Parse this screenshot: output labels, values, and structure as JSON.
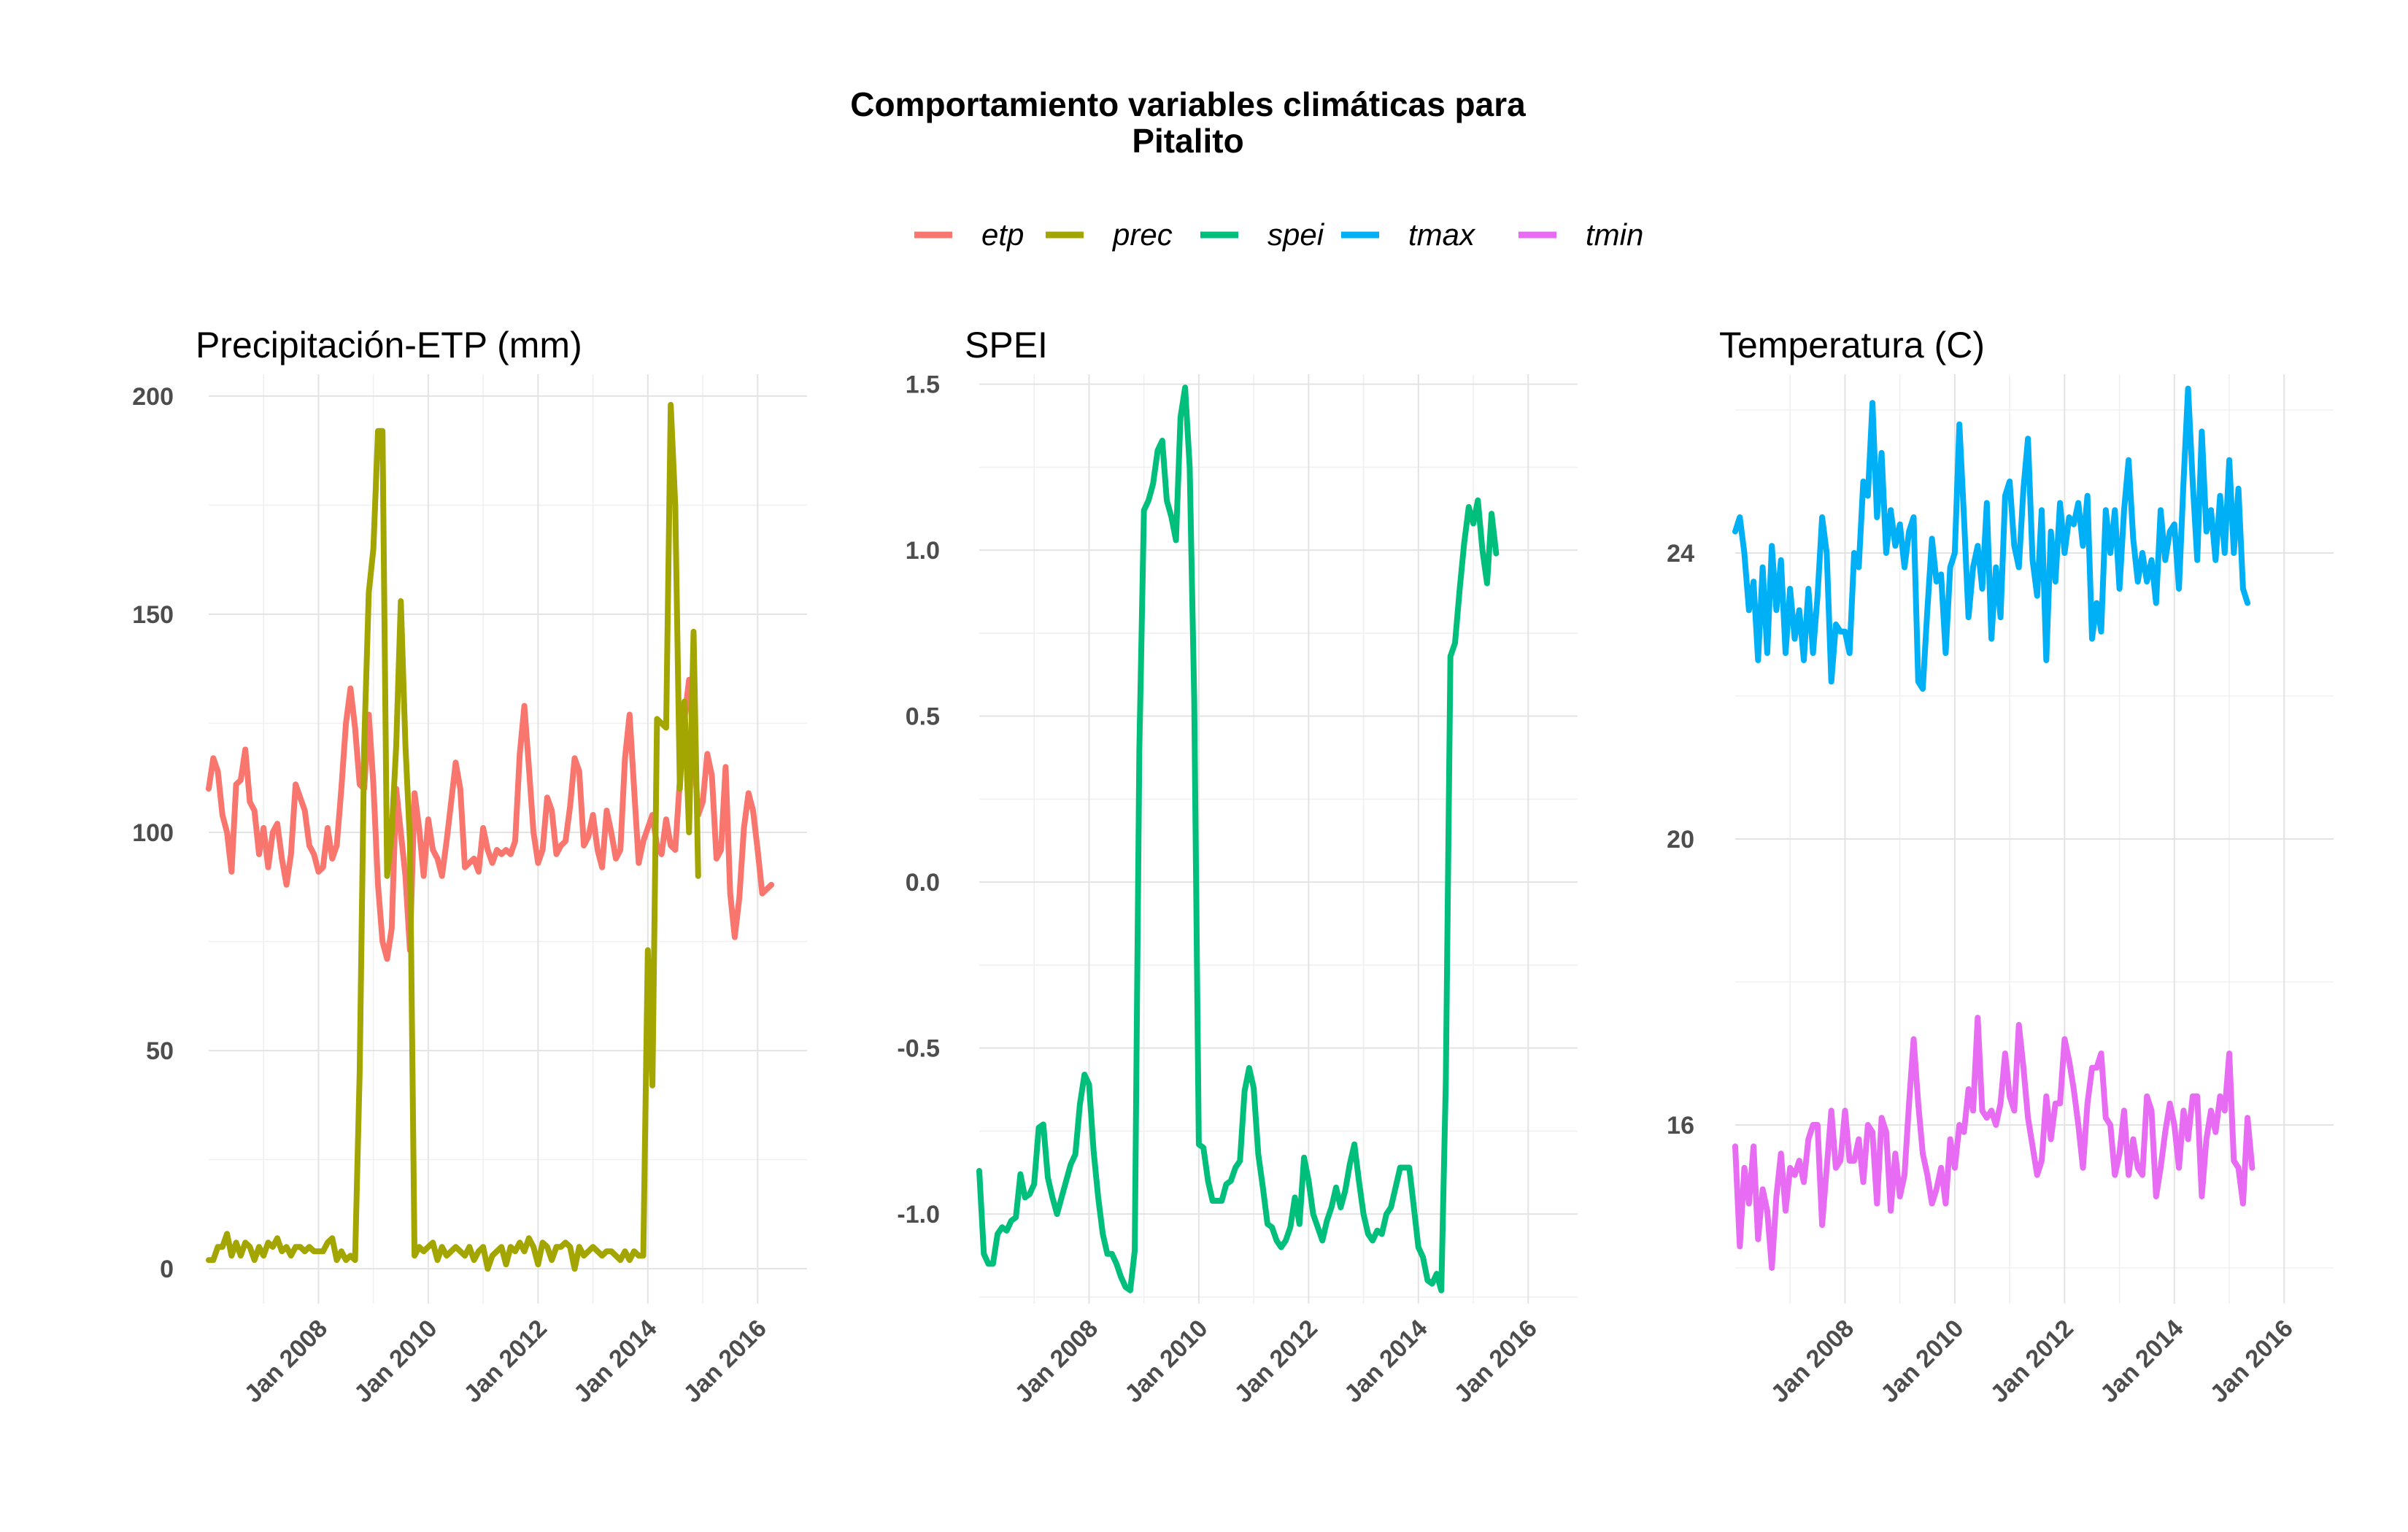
{
  "title_line1": "Comportamiento variables climáticas para",
  "title_line2": "Pitalito",
  "legend": [
    {
      "key": "etp",
      "label": "etp",
      "color": "#F8766D"
    },
    {
      "key": "prec",
      "label": "prec",
      "color": "#A3A500"
    },
    {
      "key": "spei",
      "label": "spei",
      "color": "#00BF7D"
    },
    {
      "key": "tmax",
      "label": "tmax",
      "color": "#00B0F6"
    },
    {
      "key": "tmin",
      "label": "tmin",
      "color": "#E76BF3"
    }
  ],
  "chart_data": [
    {
      "type": "line",
      "title": "Precipitación-ETP (mm)",
      "xlabel": "",
      "ylabel": "",
      "xlim": [
        2006.0,
        2016.9
      ],
      "ylim": [
        -8,
        205
      ],
      "x_ticks": [
        2008,
        2010,
        2012,
        2014,
        2016
      ],
      "x_tick_labels": [
        "Jan 2008",
        "Jan 2010",
        "Jan 2012",
        "Jan 2014",
        "Jan 2016"
      ],
      "y_ticks": [
        0,
        50,
        100,
        150,
        200
      ],
      "y_tick_labels": [
        "0",
        "50",
        "100",
        "150",
        "200"
      ],
      "grid": true,
      "series": [
        {
          "name": "etp",
          "color": "#F8766D",
          "x_start": 2006.0,
          "x_step": 0.0833333,
          "values": [
            110,
            117,
            114,
            104,
            100,
            91,
            111,
            112,
            119,
            107,
            105,
            95,
            101,
            92,
            100,
            102,
            94,
            88,
            95,
            111,
            108,
            105,
            97,
            95,
            91,
            92,
            101,
            94,
            97,
            110,
            125,
            133,
            124,
            111,
            110,
            127,
            111,
            88,
            75,
            71,
            78,
            110,
            100,
            90,
            73,
            109,
            101,
            90,
            103,
            96,
            94,
            90,
            98,
            107,
            116,
            110,
            92,
            93,
            94,
            91,
            101,
            96,
            93,
            96,
            95,
            96,
            95,
            98,
            118,
            129,
            115,
            100,
            93,
            96,
            108,
            105,
            95,
            97,
            98,
            106,
            117,
            114,
            97,
            99,
            104,
            96,
            92,
            105,
            100,
            94,
            96,
            117,
            127,
            110,
            93,
            98,
            101,
            104,
            97,
            95,
            103,
            97,
            96,
            112,
            126,
            135,
            120,
            104,
            107,
            118,
            113,
            94,
            96,
            115,
            86,
            76,
            85,
            101,
            109,
            105,
            96,
            86,
            87,
            88
          ]
        },
        {
          "name": "prec",
          "color": "#A3A500",
          "x_start": 2006.0,
          "x_step": 0.0833333,
          "values": [
            2,
            2,
            5,
            5,
            8,
            3,
            6,
            3,
            6,
            5,
            2,
            5,
            3,
            6,
            5,
            7,
            4,
            5,
            3,
            5,
            5,
            4,
            5,
            4,
            4,
            4,
            6,
            7,
            2,
            4,
            2,
            3,
            2,
            45,
            120,
            155,
            165,
            192,
            192,
            90,
            100,
            120,
            153,
            120,
            98,
            3,
            5,
            4,
            5,
            6,
            2,
            5,
            3,
            4,
            5,
            4,
            3,
            5,
            2,
            4,
            5,
            0,
            3,
            4,
            5,
            1,
            5,
            4,
            6,
            4,
            7,
            5,
            1,
            6,
            5,
            2,
            5,
            5,
            6,
            5,
            0,
            5,
            3,
            4,
            5,
            4,
            3,
            4,
            4,
            3,
            2,
            4,
            2,
            4,
            3,
            3,
            73,
            42,
            126,
            125,
            124,
            198,
            175,
            110,
            130,
            100,
            146,
            90
          ]
        }
      ]
    },
    {
      "type": "line",
      "title": "SPEI",
      "xlabel": "",
      "ylabel": "",
      "xlim": [
        2006.0,
        2016.9
      ],
      "ylim": [
        -1.27,
        1.53
      ],
      "x_ticks": [
        2008,
        2010,
        2012,
        2014,
        2016
      ],
      "x_tick_labels": [
        "Jan 2008",
        "Jan 2010",
        "Jan 2012",
        "Jan 2014",
        "Jan 2016"
      ],
      "y_ticks": [
        -1.0,
        -0.5,
        0.0,
        0.5,
        1.0,
        1.5
      ],
      "y_tick_labels": [
        "-1.0",
        "-0.5",
        "0.0",
        "0.5",
        "1.0",
        "1.5"
      ],
      "grid": true,
      "series": [
        {
          "name": "spei",
          "color": "#00BF7D",
          "x_start": 2006.0,
          "x_step": 0.0833333,
          "values": [
            -0.87,
            -1.12,
            -1.15,
            -1.15,
            -1.06,
            -1.04,
            -1.05,
            -1.02,
            -1.01,
            -0.88,
            -0.95,
            -0.94,
            -0.91,
            -0.74,
            -0.73,
            -0.89,
            -0.95,
            -1.0,
            -0.95,
            -0.9,
            -0.85,
            -0.82,
            -0.67,
            -0.58,
            -0.61,
            -0.81,
            -0.95,
            -1.06,
            -1.12,
            -1.12,
            -1.15,
            -1.19,
            -1.22,
            -1.23,
            -1.11,
            0.4,
            1.12,
            1.15,
            1.2,
            1.3,
            1.33,
            1.15,
            1.1,
            1.03,
            1.4,
            1.49,
            1.25,
            0.55,
            -0.79,
            -0.8,
            -0.9,
            -0.96,
            -0.96,
            -0.96,
            -0.91,
            -0.9,
            -0.86,
            -0.84,
            -0.63,
            -0.56,
            -0.62,
            -0.82,
            -0.92,
            -1.03,
            -1.04,
            -1.08,
            -1.1,
            -1.08,
            -1.04,
            -0.95,
            -1.03,
            -0.83,
            -0.9,
            -1.0,
            -1.04,
            -1.08,
            -1.02,
            -0.98,
            -0.92,
            -0.98,
            -0.93,
            -0.85,
            -0.79,
            -0.9,
            -1.0,
            -1.06,
            -1.08,
            -1.05,
            -1.06,
            -1.0,
            -0.98,
            -0.92,
            -0.86,
            -0.86,
            -0.86,
            -0.98,
            -1.1,
            -1.13,
            -1.2,
            -1.21,
            -1.18,
            -1.23,
            -0.6,
            0.68,
            0.72,
            0.88,
            1.02,
            1.13,
            1.08,
            1.15,
            1.0,
            0.9,
            1.11,
            0.99
          ]
        }
      ]
    },
    {
      "type": "line",
      "title": "Temperatura (C)",
      "xlabel": "",
      "ylabel": "",
      "xlim": [
        2006.0,
        2016.9
      ],
      "ylim": [
        13.5,
        26.5
      ],
      "x_ticks": [
        2008,
        2010,
        2012,
        2014,
        2016
      ],
      "x_tick_labels": [
        "Jan 2008",
        "Jan 2010",
        "Jan 2012",
        "Jan 2014",
        "Jan 2016"
      ],
      "y_ticks": [
        16,
        20,
        24
      ],
      "y_tick_labels": [
        "16",
        "20",
        "24"
      ],
      "grid": true,
      "series": [
        {
          "name": "tmax",
          "color": "#00B0F6",
          "x_start": 2006.0,
          "x_step": 0.0833333,
          "values": [
            24.3,
            24.5,
            24.0,
            23.2,
            23.6,
            22.5,
            23.8,
            22.6,
            24.1,
            23.2,
            23.9,
            22.6,
            23.5,
            22.8,
            23.2,
            22.5,
            23.5,
            22.6,
            23.4,
            24.5,
            24.0,
            22.2,
            23.0,
            22.9,
            22.9,
            22.6,
            24.0,
            23.8,
            25.0,
            24.8,
            26.1,
            24.5,
            25.4,
            24.0,
            24.6,
            24.1,
            24.4,
            23.8,
            24.3,
            24.5,
            22.2,
            22.1,
            23.2,
            24.2,
            23.6,
            23.7,
            22.6,
            23.8,
            24.0,
            25.8,
            24.5,
            23.1,
            23.8,
            24.1,
            23.5,
            24.7,
            22.8,
            23.8,
            23.1,
            24.8,
            25.0,
            24.1,
            23.8,
            24.9,
            25.6,
            23.9,
            23.4,
            24.6,
            22.5,
            24.3,
            23.6,
            24.7,
            24.0,
            24.5,
            24.4,
            24.7,
            24.1,
            24.8,
            22.8,
            23.3,
            22.9,
            24.6,
            24.0,
            24.6,
            23.5,
            24.6,
            25.3,
            24.2,
            23.6,
            24.0,
            23.6,
            23.9,
            23.3,
            24.6,
            23.9,
            24.3,
            24.4,
            23.5,
            25.0,
            26.3,
            25.0,
            23.9,
            25.7,
            24.3,
            24.6,
            23.9,
            24.8,
            24.0,
            25.3,
            24.0,
            24.9,
            23.5,
            23.3
          ]
        },
        {
          "name": "tmin",
          "color": "#E76BF3",
          "x_start": 2006.0,
          "x_step": 0.0833333,
          "values": [
            15.7,
            14.3,
            15.4,
            14.9,
            15.7,
            14.4,
            15.1,
            14.8,
            14.0,
            15.0,
            15.6,
            14.8,
            15.4,
            15.3,
            15.5,
            15.2,
            15.8,
            16.0,
            16.0,
            14.6,
            15.4,
            16.2,
            15.4,
            15.5,
            16.2,
            15.5,
            15.5,
            15.8,
            15.2,
            16.0,
            15.9,
            14.9,
            16.1,
            15.9,
            14.8,
            15.6,
            15.0,
            15.3,
            16.3,
            17.2,
            16.3,
            15.6,
            15.3,
            14.9,
            15.1,
            15.4,
            14.9,
            15.8,
            15.4,
            16.0,
            15.9,
            16.5,
            16.2,
            17.5,
            16.2,
            16.1,
            16.2,
            16.0,
            16.3,
            17.0,
            16.4,
            16.2,
            17.4,
            16.8,
            16.1,
            15.7,
            15.3,
            15.5,
            16.4,
            15.8,
            16.3,
            16.3,
            17.2,
            16.9,
            16.5,
            16.0,
            15.4,
            16.3,
            16.8,
            16.8,
            17.0,
            16.1,
            16.0,
            15.3,
            15.6,
            16.2,
            15.3,
            15.8,
            15.4,
            15.3,
            16.4,
            16.2,
            15.0,
            15.4,
            15.9,
            16.3,
            16.0,
            15.4,
            16.2,
            15.8,
            16.4,
            16.4,
            15.0,
            15.8,
            16.2,
            15.9,
            16.4,
            16.2,
            17.0,
            15.5,
            15.4,
            14.9,
            16.1,
            15.4
          ]
        }
      ]
    }
  ]
}
